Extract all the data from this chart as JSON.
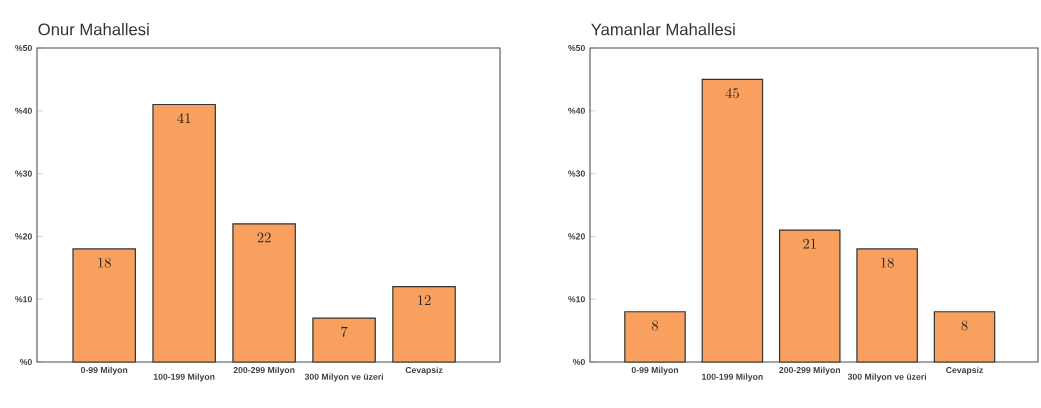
{
  "chart_data": [
    {
      "type": "bar",
      "title": "Onur Mahallesi",
      "categories": [
        "0-99 Milyon",
        "100-199 Milyon",
        "200-299 Milyon",
        "300 Milyon ve üzeri",
        "Cevapsiz"
      ],
      "values": [
        18,
        41,
        22,
        7,
        12
      ],
      "color": "#f9a05f",
      "ylim": [
        0,
        50
      ],
      "yticks": [
        {
          "value": 0,
          "label": "%0"
        },
        {
          "value": 10,
          "label": "%10"
        },
        {
          "value": 20,
          "label": "%20"
        },
        {
          "value": 30,
          "label": "%30"
        },
        {
          "value": 40,
          "label": "%40"
        },
        {
          "value": 50,
          "label": "%50"
        }
      ],
      "data_labels": true
    },
    {
      "type": "bar",
      "title": "Yamanlar Mahallesi",
      "categories": [
        "0-99 Milyon",
        "100-199 Milyon",
        "200-299 Milyon",
        "300 Milyon ve üzeri",
        "Cevapsiz"
      ],
      "values": [
        8,
        45,
        21,
        18,
        8
      ],
      "color": "#f9a05f",
      "ylim": [
        0,
        50
      ],
      "yticks": [
        {
          "value": 0,
          "label": "%0"
        },
        {
          "value": 10,
          "label": "%10"
        },
        {
          "value": 20,
          "label": "%20"
        },
        {
          "value": 30,
          "label": "%30"
        },
        {
          "value": 40,
          "label": "%40"
        },
        {
          "value": 50,
          "label": "%50"
        }
      ],
      "data_labels": true
    }
  ]
}
